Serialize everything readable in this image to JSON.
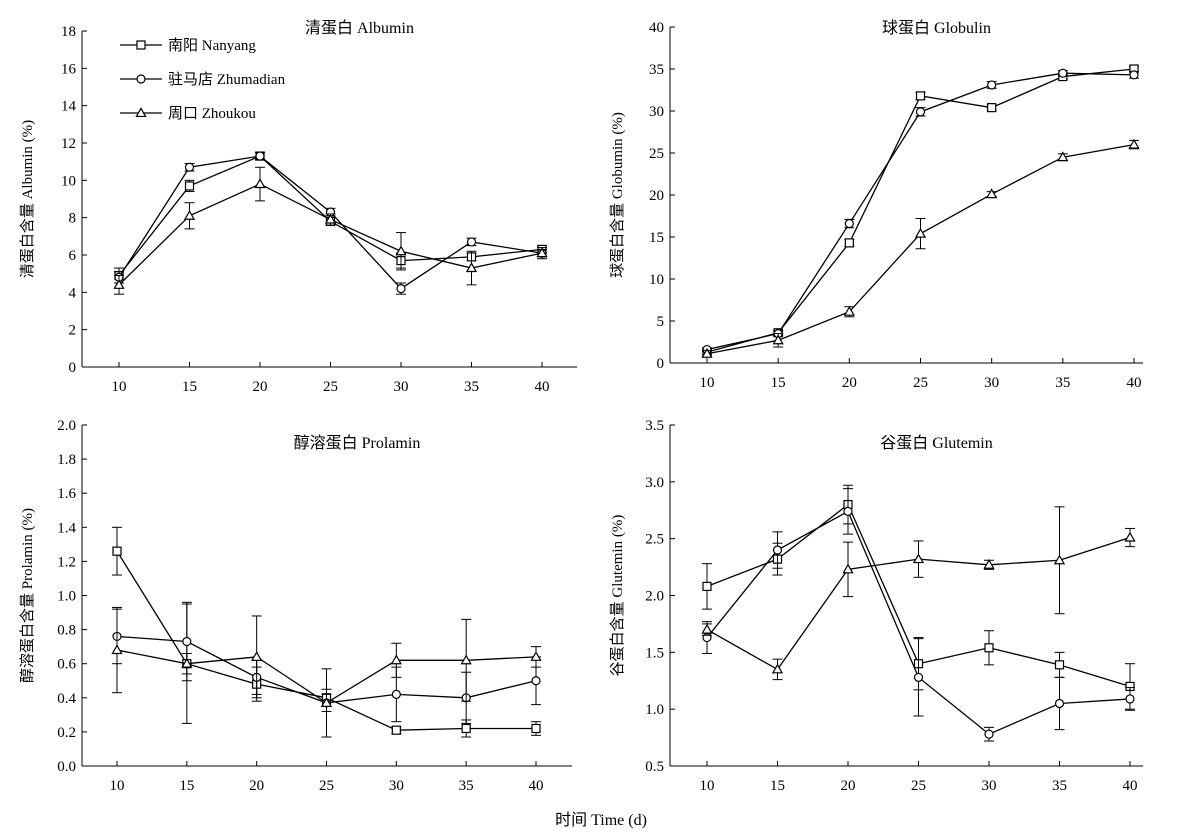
{
  "figure": {
    "xlabel": "时间 Time (d)"
  },
  "legend": [
    {
      "name": "南阳 Nanyang",
      "marker": "square"
    },
    {
      "name": "驻马店 Zhumadian",
      "marker": "circle"
    },
    {
      "name": "周口 Zhoukou",
      "marker": "triangle"
    }
  ],
  "chart_data": [
    {
      "type": "line",
      "title": "清蛋白 Albumin",
      "ylabel": "清蛋白含量 Albumin (%)",
      "x": [
        10,
        15,
        20,
        25,
        30,
        35,
        40
      ],
      "ylim": [
        0,
        18
      ],
      "yticks": [
        0,
        2,
        4,
        6,
        8,
        10,
        12,
        14,
        16,
        18
      ],
      "ytick_labels": [
        "0",
        "2",
        "4",
        "6",
        "8",
        "10",
        "12",
        "14",
        "16",
        "18"
      ],
      "legend_position": "top-left",
      "series": [
        {
          "name": "南阳 Nanyang",
          "marker": "square",
          "values": [
            4.9,
            9.7,
            11.3,
            7.8,
            5.7,
            5.9,
            6.3
          ],
          "errors": [
            0.4,
            0.3,
            0.2,
            0.2,
            0.4,
            0.2,
            0.2
          ]
        },
        {
          "name": "驻马店 Zhumadian",
          "marker": "circle",
          "values": [
            4.8,
            10.7,
            11.3,
            8.3,
            4.2,
            6.7,
            6.1
          ],
          "errors": [
            0.3,
            0.2,
            0.2,
            0.2,
            0.3,
            0.2,
            0.2
          ]
        },
        {
          "name": "周口 Zhoukou",
          "marker": "triangle",
          "values": [
            4.4,
            8.1,
            9.8,
            7.9,
            6.2,
            5.3,
            6.1
          ],
          "errors": [
            0.5,
            0.7,
            0.9,
            0.3,
            1.0,
            0.9,
            0.3
          ]
        }
      ]
    },
    {
      "type": "line",
      "title": "球蛋白 Globulin",
      "ylabel": "球蛋白含量 Globumin (%)",
      "x": [
        10,
        15,
        20,
        25,
        30,
        35,
        40
      ],
      "ylim": [
        0,
        40
      ],
      "yticks": [
        0,
        5,
        10,
        15,
        20,
        25,
        30,
        35,
        40
      ],
      "ytick_labels": [
        "0",
        "5",
        "10",
        "15",
        "20",
        "25",
        "30",
        "35",
        "40"
      ],
      "series": [
        {
          "name": "南阳 Nanyang",
          "marker": "square",
          "values": [
            1.3,
            3.6,
            14.3,
            31.8,
            30.4,
            34.1,
            35.0
          ],
          "errors": [
            0.3,
            0.3,
            0.4,
            0.4,
            0.3,
            0.3,
            0.3
          ]
        },
        {
          "name": "驻马店 Zhumadian",
          "marker": "circle",
          "values": [
            1.6,
            3.5,
            16.6,
            29.9,
            33.1,
            34.5,
            34.3
          ],
          "errors": [
            0.2,
            0.3,
            0.5,
            0.5,
            0.4,
            0.3,
            0.4
          ]
        },
        {
          "name": "周口 Zhoukou",
          "marker": "triangle",
          "values": [
            1.1,
            2.7,
            6.1,
            15.4,
            20.1,
            24.5,
            26.0
          ],
          "errors": [
            0.4,
            0.8,
            0.6,
            1.8,
            0.3,
            0.4,
            0.5
          ]
        }
      ]
    },
    {
      "type": "line",
      "title": "醇溶蛋白 Prolamin",
      "ylabel": "醇溶蛋白含量 Prolamin (%)",
      "x": [
        10,
        15,
        20,
        25,
        30,
        35,
        40
      ],
      "ylim": [
        0,
        2.0
      ],
      "yticks": [
        0,
        0.2,
        0.4,
        0.6,
        0.8,
        1.0,
        1.2,
        1.4,
        1.6,
        1.8,
        2.0
      ],
      "ytick_labels": [
        "0.0",
        "0.2",
        "0.4",
        "0.6",
        "0.8",
        "1.0",
        "1.2",
        "1.4",
        "1.6",
        "1.8",
        "2.0"
      ],
      "series": [
        {
          "name": "南阳 Nanyang",
          "marker": "square",
          "values": [
            1.26,
            0.6,
            0.48,
            0.4,
            0.21,
            0.22,
            0.22
          ],
          "errors": [
            0.14,
            0.35,
            0.1,
            0.05,
            0.02,
            0.05,
            0.04
          ]
        },
        {
          "name": "驻马店 Zhumadian",
          "marker": "circle",
          "values": [
            0.76,
            0.73,
            0.52,
            0.37,
            0.42,
            0.4,
            0.5
          ],
          "errors": [
            0.16,
            0.23,
            0.1,
            0.2,
            0.16,
            0.15,
            0.14
          ]
        },
        {
          "name": "周口 Zhoukou",
          "marker": "triangle",
          "values": [
            0.68,
            0.6,
            0.64,
            0.37,
            0.62,
            0.62,
            0.64
          ],
          "errors": [
            0.25,
            0.06,
            0.24,
            0.05,
            0.1,
            0.24,
            0.06
          ]
        }
      ]
    },
    {
      "type": "line",
      "title": "谷蛋白 Glutemin",
      "ylabel": "谷蛋白含量 Glutemin (%)",
      "x": [
        10,
        15,
        20,
        25,
        30,
        35,
        40
      ],
      "ylim": [
        0.5,
        3.5
      ],
      "yticks": [
        0.5,
        1.0,
        1.5,
        2.0,
        2.5,
        3.0,
        3.5
      ],
      "ytick_labels": [
        "0.5",
        "1.0",
        "1.5",
        "2.0",
        "2.5",
        "3.0",
        "3.5"
      ],
      "series": [
        {
          "name": "南阳 Nanyang",
          "marker": "square",
          "values": [
            2.08,
            2.32,
            2.8,
            1.4,
            1.54,
            1.39,
            1.2
          ],
          "errors": [
            0.2,
            0.14,
            0.17,
            0.23,
            0.15,
            0.11,
            0.2
          ]
        },
        {
          "name": "驻马店 Zhumadian",
          "marker": "circle",
          "values": [
            1.63,
            2.4,
            2.74,
            1.28,
            0.78,
            1.05,
            1.09
          ],
          "errors": [
            0.14,
            0.16,
            0.2,
            0.34,
            0.06,
            0.23,
            0.1
          ]
        },
        {
          "name": "周口 Zhoukou",
          "marker": "triangle",
          "values": [
            1.7,
            1.35,
            2.23,
            2.32,
            2.27,
            2.31,
            2.51
          ],
          "errors": [
            0.05,
            0.09,
            0.24,
            0.16,
            0.04,
            0.47,
            0.08
          ]
        }
      ]
    }
  ]
}
